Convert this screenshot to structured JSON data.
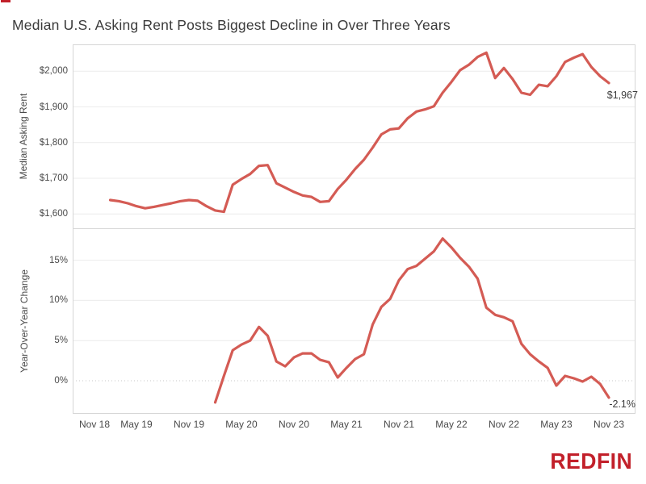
{
  "title": "Median U.S. Asking Rent Posts Biggest Decline in Over Three Years",
  "logo": {
    "text": "REDFIN",
    "color": "#c2202a"
  },
  "colors": {
    "line": "#d45b54",
    "gridline": "#ececec",
    "border": "#d6d6d6",
    "zero_line_dotted": "#c7c7c7",
    "text": "#4a4a4a",
    "title_text": "#3a3a3a",
    "annotation_text": "#3c3c3c"
  },
  "x_axis": {
    "base_month": "2018-11",
    "tick_labels": [
      {
        "label": "Nov 18",
        "month": "2018-11"
      },
      {
        "label": "May 19",
        "month": "2019-05"
      },
      {
        "label": "Nov 19",
        "month": "2019-11"
      },
      {
        "label": "May 20",
        "month": "2020-05"
      },
      {
        "label": "Nov 20",
        "month": "2020-11"
      },
      {
        "label": "May 21",
        "month": "2021-05"
      },
      {
        "label": "Nov 21",
        "month": "2021-11"
      },
      {
        "label": "May 22",
        "month": "2022-05"
      },
      {
        "label": "Nov 22",
        "month": "2022-11"
      },
      {
        "label": "May 23",
        "month": "2023-05"
      },
      {
        "label": "Nov 23",
        "month": "2023-11"
      }
    ]
  },
  "chart_data": [
    {
      "type": "line",
      "name": "median-asking-rent",
      "ylabel": "Median Asking Rent",
      "frequency": "monthly",
      "series_start": "2019-02",
      "series_end": "2023-11",
      "ylim": [
        1555,
        2080
      ],
      "grid": true,
      "y_ticks": [
        {
          "label": "$2,000",
          "value": 2000
        },
        {
          "label": "$1,900",
          "value": 1900
        },
        {
          "label": "$1,800",
          "value": 1800
        },
        {
          "label": "$1,700",
          "value": 1700
        },
        {
          "label": "$1,600",
          "value": 1600
        }
      ],
      "values": [
        1639,
        1636,
        1630,
        1622,
        1616,
        1620,
        1625,
        1630,
        1636,
        1639,
        1637,
        1622,
        1610,
        1606,
        1682,
        1698,
        1712,
        1735,
        1737,
        1686,
        1674,
        1662,
        1652,
        1648,
        1634,
        1636,
        1670,
        1696,
        1726,
        1752,
        1786,
        1823,
        1837,
        1840,
        1868,
        1887,
        1893,
        1902,
        1940,
        1970,
        2003,
        2018,
        2040,
        2052,
        1981,
        2009,
        1978,
        1940,
        1934,
        1962,
        1958,
        1986,
        2026,
        2038,
        2048,
        2012,
        1986,
        1967
      ],
      "end_annotation": "$1,967"
    },
    {
      "type": "line",
      "name": "year-over-year-change",
      "ylabel": "Year-Over-Year Change",
      "frequency": "monthly",
      "series_start": "2020-02",
      "series_end": "2023-11",
      "ylim": [
        -4.5,
        19
      ],
      "grid": true,
      "y_ticks": [
        {
          "label": "15%",
          "value": 15
        },
        {
          "label": "10%",
          "value": 10
        },
        {
          "label": "5%",
          "value": 5
        },
        {
          "label": "0%",
          "value": 0,
          "style": "dotted"
        }
      ],
      "values": [
        -2.7,
        0.6,
        3.8,
        4.5,
        5.0,
        6.7,
        5.6,
        2.4,
        1.8,
        2.9,
        3.4,
        3.4,
        2.6,
        2.3,
        0.4,
        1.6,
        2.7,
        3.3,
        7.0,
        9.2,
        10.2,
        12.5,
        13.9,
        14.3,
        15.2,
        16.1,
        17.7,
        16.6,
        15.3,
        14.2,
        12.7,
        9.1,
        8.2,
        7.9,
        7.4,
        4.6,
        3.3,
        2.4,
        1.6,
        -0.6,
        0.6,
        0.3,
        -0.1,
        0.5,
        -0.4,
        -2.1
      ],
      "end_annotation": "-2.1%"
    }
  ]
}
